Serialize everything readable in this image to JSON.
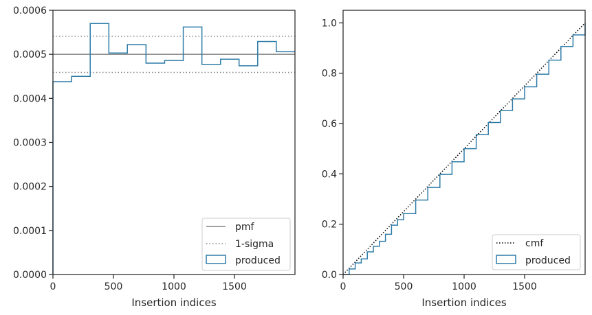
{
  "chart_data": [
    {
      "type": "line",
      "xlabel": "Insertion indices",
      "ylabel": "",
      "xlim": [
        0,
        2000
      ],
      "ylim": [
        0,
        0.0006
      ],
      "xticks": [
        0,
        500,
        1000,
        1500
      ],
      "xtick_labels": [
        "0",
        "500",
        "1000",
        "1500"
      ],
      "yticks": [
        0,
        0.0001,
        0.0002,
        0.0003,
        0.0004,
        0.0005,
        0.0006
      ],
      "ytick_labels": [
        "0.0000",
        "0.0001",
        "0.0002",
        "0.0003",
        "0.0004",
        "0.0005",
        "0.0006"
      ],
      "grid": false,
      "legend_position": "lower-right",
      "series": [
        {
          "name": "pmf",
          "style": "solid",
          "color": "#808080",
          "y": 0.0005
        },
        {
          "name": "1-sigma",
          "style": "dotted",
          "color": "#808080",
          "y_values": [
            0.000459,
            0.000541
          ]
        },
        {
          "name": "produced",
          "style": "step",
          "color": "#2e7ca8",
          "bin_edges": [
            0,
            154,
            308,
            462,
            615,
            769,
            923,
            1077,
            1231,
            1385,
            1538,
            1692,
            1846,
            2000
          ],
          "values": [
            0.000438,
            0.00045,
            0.00057,
            0.000503,
            0.000522,
            0.00048,
            0.000486,
            0.000562,
            0.000477,
            0.000489,
            0.000474,
            0.000529,
            0.000506
          ]
        }
      ]
    },
    {
      "type": "line",
      "xlabel": "Insertion indices",
      "ylabel": "",
      "xlim": [
        0,
        2000
      ],
      "ylim": [
        0,
        1.05
      ],
      "xticks": [
        0,
        500,
        1000,
        1500
      ],
      "xtick_labels": [
        "0",
        "500",
        "1000",
        "1500"
      ],
      "yticks": [
        0,
        0.2,
        0.4,
        0.6,
        0.8,
        1.0
      ],
      "ytick_labels": [
        "0.0",
        "0.2",
        "0.4",
        "0.6",
        "0.8",
        "1.0"
      ],
      "grid": false,
      "legend_position": "lower-right",
      "series": [
        {
          "name": "cmf",
          "style": "dotted",
          "color": "#000000",
          "x": [
            0,
            2000
          ],
          "y": [
            0,
            1.0
          ]
        },
        {
          "name": "produced",
          "style": "step",
          "color": "#2e7ca8",
          "x": [
            0,
            50,
            100,
            150,
            200,
            250,
            300,
            350,
            400,
            450,
            500,
            600,
            700,
            800,
            900,
            1000,
            1100,
            1200,
            1300,
            1400,
            1500,
            1600,
            1700,
            1800,
            1900,
            2000
          ],
          "y": [
            0,
            0.022,
            0.046,
            0.062,
            0.09,
            0.112,
            0.132,
            0.16,
            0.196,
            0.218,
            0.242,
            0.296,
            0.346,
            0.398,
            0.448,
            0.5,
            0.556,
            0.604,
            0.652,
            0.698,
            0.746,
            0.796,
            0.852,
            0.906,
            0.952,
            1.0
          ]
        }
      ]
    }
  ]
}
